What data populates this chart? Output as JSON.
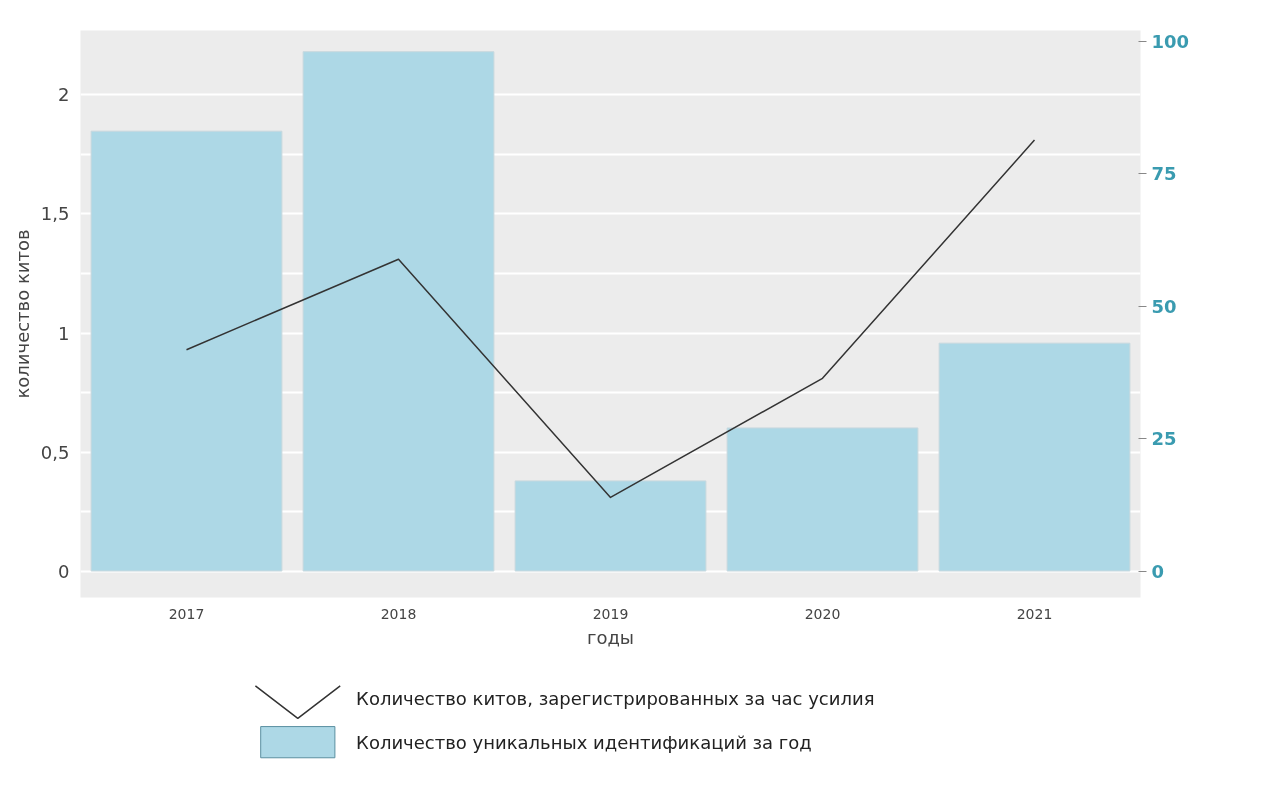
{
  "chart_data": {
    "type": "bar",
    "xlabel": "годы",
    "ylabel": "количество китов",
    "categories": [
      "2017",
      "2018",
      "2019",
      "2020",
      "2021"
    ],
    "series": [
      {
        "name": "Количество китов, зарегистрированных за час усилия",
        "type": "line",
        "color": "#333333",
        "values": [
          0.93,
          1.31,
          0.31,
          0.81,
          1.81
        ]
      },
      {
        "name": "Количество уникальных идентификаций за год",
        "axis": "y2",
        "color": "#add8e6",
        "values": [
          83,
          98,
          17,
          27,
          43
        ]
      }
    ],
    "ylim": [
      -0.11,
      2.27
    ],
    "yticks": [
      0,
      {
        "value": 0.25,
        "label": null
      },
      {
        "value": 0.5,
        "label": "0,5"
      },
      {
        "value": 0.75,
        "label": null
      },
      1,
      {
        "value": 1.25,
        "label": null
      },
      {
        "value": 1.5,
        "label": "1,5"
      },
      {
        "value": 1.75,
        "label": null
      },
      2
    ],
    "y2lim": [
      -5,
      102
    ],
    "y2ticks": [
      0,
      25,
      50,
      75,
      100
    ],
    "grid": "y",
    "legend": "bottom"
  }
}
